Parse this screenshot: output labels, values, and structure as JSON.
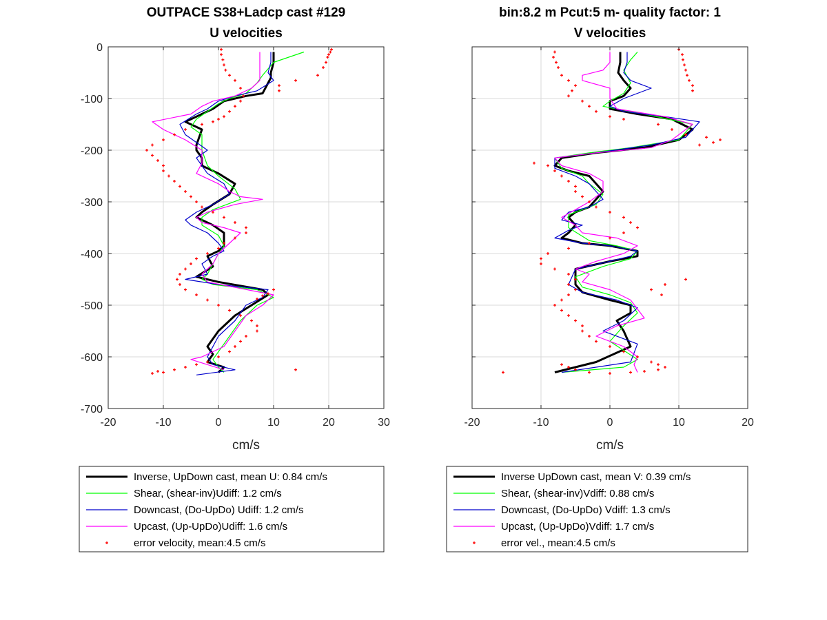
{
  "chart_data": [
    {
      "type": "line",
      "title": [
        "OUTPACE S38+Ladcp cast #129",
        "U velocities"
      ],
      "xlabel": "cm/s",
      "ylabel": "",
      "xlim": [
        -20,
        30
      ],
      "ylim": [
        -700,
        0
      ],
      "xticks": [
        -20,
        -10,
        0,
        10,
        20,
        30
      ],
      "yticks": [
        0,
        -100,
        -200,
        -300,
        -400,
        -500,
        -600,
        -700
      ],
      "grid": true,
      "legend_position": "below",
      "series": [
        {
          "name": "Inverse, UpDown cast, mean U:  0.84 cm/s",
          "color": "#000000",
          "style": "line-thick",
          "x": [
            10,
            10,
            9.5,
            9.5,
            8,
            5,
            1,
            -1,
            -3,
            -6,
            -5,
            -3,
            -4,
            -4,
            -3,
            -3,
            0,
            3,
            2,
            -1,
            -3,
            -4,
            -1,
            1,
            1,
            0,
            -2,
            -1,
            -4,
            0,
            8,
            9,
            6,
            3,
            0,
            -2,
            -1,
            -2,
            1,
            0
          ],
          "y": [
            -10,
            -30,
            -50,
            -60,
            -90,
            -95,
            -105,
            -120,
            -130,
            -145,
            -150,
            -160,
            -190,
            -200,
            -215,
            -230,
            -245,
            -265,
            -285,
            -305,
            -320,
            -330,
            -345,
            -360,
            -385,
            -395,
            -405,
            -425,
            -445,
            -455,
            -470,
            -480,
            -500,
            -520,
            -550,
            -580,
            -595,
            -610,
            -620,
            -630
          ]
        },
        {
          "name": "Shear, (shear-inv)Udiff:  1.2 cm/s",
          "color": "#00ff00",
          "style": "line",
          "x": [
            15.5,
            10,
            8,
            7,
            5,
            2,
            0,
            -2,
            -4,
            -5,
            -3,
            -3,
            -2,
            0,
            3,
            4,
            -1,
            -3,
            -3,
            0,
            1,
            0,
            -1,
            -2,
            -3,
            -1,
            7,
            10,
            7,
            4,
            2,
            0,
            -1,
            0,
            1
          ],
          "y": [
            -10,
            -30,
            -55,
            -70,
            -90,
            -100,
            -110,
            -125,
            -140,
            -155,
            -170,
            -200,
            -230,
            -250,
            -275,
            -295,
            -315,
            -330,
            -345,
            -365,
            -385,
            -400,
            -420,
            -440,
            -450,
            -460,
            -470,
            -485,
            -500,
            -530,
            -560,
            -590,
            -605,
            -620,
            -630
          ]
        },
        {
          "name": "Downcast, (Do-UpDo) Udiff:  1.2 cm/s",
          "color": "#0000cc",
          "style": "line",
          "x": [
            9.5,
            9.5,
            9,
            10,
            7,
            3,
            0,
            -2,
            -4,
            -7,
            -6,
            -4,
            -2,
            -4,
            -3,
            -2,
            1,
            2,
            -1,
            -4,
            -6,
            -5,
            -2,
            0,
            1,
            -1,
            -3,
            -2,
            -6,
            0,
            9,
            8,
            5,
            3,
            0,
            -1,
            -2,
            -1,
            3,
            -4
          ],
          "y": [
            -10,
            -30,
            -50,
            -65,
            -85,
            -95,
            -105,
            -120,
            -130,
            -150,
            -170,
            -185,
            -200,
            -215,
            -230,
            -245,
            -265,
            -285,
            -305,
            -320,
            -335,
            -345,
            -360,
            -380,
            -395,
            -405,
            -420,
            -440,
            -450,
            -460,
            -470,
            -485,
            -500,
            -530,
            -560,
            -580,
            -600,
            -615,
            -625,
            -635
          ]
        },
        {
          "name": "Upcast, (Up-UpDo)Udiff:  1.6 cm/s",
          "color": "#ff00ff",
          "style": "line",
          "x": [
            7.5,
            7.5,
            7.5,
            6,
            3,
            -1,
            -3,
            -5,
            -12,
            -10,
            -6,
            -3,
            -3,
            -4,
            0,
            2,
            4,
            8,
            3,
            -2,
            -4,
            -3,
            1,
            4,
            2,
            0,
            -1,
            -3,
            -2,
            10,
            8,
            5,
            3,
            1,
            -3,
            -5,
            -2,
            1
          ],
          "y": [
            -10,
            -40,
            -65,
            -80,
            -95,
            -105,
            -115,
            -130,
            -145,
            -160,
            -180,
            -200,
            -225,
            -245,
            -265,
            -280,
            -290,
            -295,
            -305,
            -320,
            -330,
            -340,
            -350,
            -360,
            -380,
            -400,
            -420,
            -440,
            -455,
            -480,
            -500,
            -520,
            -550,
            -580,
            -600,
            -605,
            -615,
            -625
          ]
        },
        {
          "name": "error velocity, mean:4.5 cm/s",
          "color": "#ff0000",
          "style": "markers",
          "x": [
            0.5,
            0.5,
            0.8,
            1,
            1.3,
            2,
            3,
            4,
            4.5,
            4,
            3,
            2,
            1,
            0,
            -1,
            -3,
            -6,
            -8,
            -10,
            -12,
            -13,
            -12,
            -11,
            -10,
            -10,
            -9,
            -8,
            -7,
            -6,
            -5,
            -4,
            -3,
            -1,
            1,
            3,
            5,
            5,
            3,
            1,
            0,
            -2,
            -4,
            -5,
            -6,
            -7,
            -7.5,
            -7,
            -6,
            -4,
            -2,
            0,
            2,
            4,
            6,
            7,
            7,
            5,
            4,
            3,
            2,
            0,
            -2,
            -4,
            -6,
            -8,
            -10,
            -11,
            -12,
            20.5,
            20.3,
            20,
            19.8,
            19.5,
            19,
            18,
            14,
            11,
            11,
            10,
            9,
            8,
            7,
            14
          ],
          "y": [
            -5,
            -15,
            -25,
            -35,
            -45,
            -55,
            -65,
            -80,
            -95,
            -105,
            -115,
            -125,
            -135,
            -140,
            -145,
            -150,
            -160,
            -170,
            -180,
            -190,
            -200,
            -210,
            -220,
            -230,
            -240,
            -250,
            -260,
            -270,
            -280,
            -290,
            -300,
            -310,
            -320,
            -330,
            -340,
            -350,
            -360,
            -370,
            -380,
            -390,
            -400,
            -410,
            -420,
            -430,
            -440,
            -450,
            -460,
            -470,
            -480,
            -490,
            -500,
            -510,
            -520,
            -530,
            -540,
            -550,
            -560,
            -570,
            -580,
            -590,
            -600,
            -610,
            -615,
            -620,
            -625,
            -630,
            -628,
            -632,
            -5,
            -10,
            -15,
            -20,
            -30,
            -40,
            -55,
            -65,
            -75,
            -85,
            -470,
            -478,
            -482,
            -488,
            -625
          ]
        }
      ]
    },
    {
      "type": "line",
      "title": [
        "bin:8.2 m  Pcut:5 m- quality factor:  1",
        "V velocities"
      ],
      "xlabel": "cm/s",
      "ylabel": "",
      "xlim": [
        -20,
        20
      ],
      "ylim": [
        -700,
        0
      ],
      "xticks": [
        -20,
        -10,
        0,
        10,
        20
      ],
      "yticks": [
        0,
        -100,
        -200,
        -300,
        -400,
        -500,
        -600,
        -700
      ],
      "grid": true,
      "legend_position": "below",
      "series": [
        {
          "name": "Inverse UpDown cast, mean V:  0.39 cm/s",
          "color": "#000000",
          "style": "line-thick",
          "x": [
            1.5,
            1.5,
            1.2,
            2,
            3,
            2,
            0,
            0,
            4,
            9,
            12,
            10,
            5,
            -2,
            -7,
            -8,
            -6,
            -3,
            -2,
            -1,
            -2,
            -3,
            -5,
            -6,
            -5,
            -6,
            -7,
            -4,
            0,
            4,
            4,
            0,
            -5,
            -5,
            -4,
            0,
            3,
            3,
            1,
            2,
            3,
            -2,
            -8
          ],
          "y": [
            -10,
            -30,
            -50,
            -65,
            -80,
            -95,
            -105,
            -120,
            -130,
            -140,
            -160,
            -180,
            -195,
            -205,
            -215,
            -230,
            -240,
            -250,
            -265,
            -280,
            -295,
            -310,
            -320,
            -330,
            -345,
            -360,
            -370,
            -380,
            -385,
            -395,
            -405,
            -415,
            -430,
            -460,
            -475,
            -490,
            -500,
            -515,
            -530,
            -550,
            -580,
            -610,
            -630
          ]
        },
        {
          "name": "Shear, (shear-inv)Vdiff:  0.88 cm/s",
          "color": "#00ff00",
          "style": "line",
          "x": [
            4,
            3,
            2,
            3,
            2,
            0,
            -1,
            5,
            12,
            10,
            3,
            -3,
            -8,
            -7,
            -4,
            -3,
            -1,
            -2,
            -6,
            -6,
            -3,
            1,
            4,
            3,
            -1,
            -5,
            -4,
            0,
            3,
            4,
            2,
            0,
            4,
            2,
            -7
          ],
          "y": [
            -10,
            -25,
            -45,
            -70,
            -90,
            -105,
            -115,
            -130,
            -150,
            -180,
            -195,
            -205,
            -215,
            -235,
            -250,
            -265,
            -285,
            -305,
            -325,
            -350,
            -375,
            -385,
            -395,
            -410,
            -425,
            -445,
            -465,
            -480,
            -495,
            -515,
            -540,
            -570,
            -605,
            -620,
            -630
          ]
        },
        {
          "name": "Downcast, (Do-UpDo) Vdiff:  1.3 cm/s",
          "color": "#0000cc",
          "style": "line",
          "x": [
            2.5,
            2.5,
            2,
            3,
            6,
            2,
            0,
            2,
            8,
            13,
            11,
            6,
            -2,
            -8,
            -8,
            -5,
            -3,
            -2,
            -1,
            -3,
            -6,
            -7,
            -4,
            -6,
            -8,
            -4,
            0,
            4,
            3,
            0,
            -5,
            -6,
            -4,
            1,
            4,
            2,
            -1,
            4,
            3,
            -7
          ],
          "y": [
            -10,
            -30,
            -50,
            -65,
            -80,
            -100,
            -115,
            -125,
            -135,
            -145,
            -175,
            -190,
            -205,
            -215,
            -235,
            -250,
            -265,
            -280,
            -295,
            -310,
            -320,
            -335,
            -345,
            -355,
            -370,
            -380,
            -385,
            -395,
            -405,
            -415,
            -430,
            -460,
            -475,
            -490,
            -505,
            -530,
            -550,
            -575,
            -610,
            -630
          ]
        },
        {
          "name": "Upcast, (Up-UpDo)Vdiff:  1.7 cm/s",
          "color": "#ff00ff",
          "style": "line",
          "x": [
            0,
            0,
            -1,
            -4,
            -4,
            0,
            0,
            1,
            8,
            12,
            9,
            6,
            -2,
            -8,
            -7,
            -3,
            -1,
            -1,
            -3,
            -5,
            -7,
            -5,
            -4,
            1,
            4,
            2,
            -2,
            -5,
            -3,
            -4,
            0,
            3,
            5,
            1,
            -2,
            2,
            4,
            3.5,
            4
          ],
          "y": [
            -10,
            -30,
            -45,
            -55,
            -65,
            -80,
            -100,
            -120,
            -135,
            -150,
            -180,
            -195,
            -205,
            -215,
            -230,
            -245,
            -260,
            -280,
            -300,
            -315,
            -330,
            -345,
            -360,
            -370,
            -385,
            -400,
            -415,
            -430,
            -440,
            -455,
            -470,
            -490,
            -525,
            -540,
            -560,
            -580,
            -600,
            -615,
            -630
          ]
        },
        {
          "name": "error vel., mean:4.5 cm/s",
          "color": "#ff0000",
          "style": "markers",
          "x": [
            -8,
            -8.2,
            -7.8,
            -7.5,
            -7,
            -6,
            -5,
            -5.5,
            -6,
            -4,
            -3,
            -2,
            0,
            2,
            7,
            9,
            11,
            14,
            16,
            15,
            13,
            -11,
            -9,
            -8,
            -7,
            -6,
            -5,
            -5,
            -4,
            -3,
            -2,
            0,
            2,
            3,
            4,
            2,
            0,
            -3,
            -6,
            -9,
            -10,
            -10,
            -8,
            -6,
            -5,
            -6,
            -5,
            -6,
            -7,
            -8,
            -7,
            -6,
            -5,
            -4,
            -4,
            -3,
            -2,
            0,
            2,
            4,
            6,
            7,
            8,
            7,
            5,
            3,
            0,
            -3,
            -5,
            -6,
            -7,
            -15.5,
            10,
            10.5,
            10.6,
            10.8,
            11,
            11.2,
            11.5,
            12,
            12,
            11,
            8,
            6,
            7.5
          ],
          "y": [
            -10,
            -20,
            -30,
            -40,
            -55,
            -65,
            -75,
            -85,
            -95,
            -105,
            -115,
            -125,
            -135,
            -140,
            -150,
            -160,
            -170,
            -175,
            -180,
            -185,
            -190,
            -225,
            -230,
            -240,
            -250,
            -260,
            -270,
            -280,
            -290,
            -300,
            -310,
            -320,
            -330,
            -340,
            -350,
            -360,
            -370,
            -380,
            -390,
            -400,
            -410,
            -420,
            -430,
            -440,
            -450,
            -460,
            -470,
            -480,
            -490,
            -500,
            -510,
            -520,
            -530,
            -540,
            -550,
            -560,
            -570,
            -580,
            -590,
            -600,
            -610,
            -615,
            -620,
            -625,
            -628,
            -630,
            -632,
            -630,
            -625,
            -620,
            -615,
            -630,
            -5,
            -15,
            -25,
            -35,
            -45,
            -55,
            -65,
            -75,
            -85,
            -450,
            -460,
            -470,
            -480
          ]
        }
      ]
    }
  ]
}
